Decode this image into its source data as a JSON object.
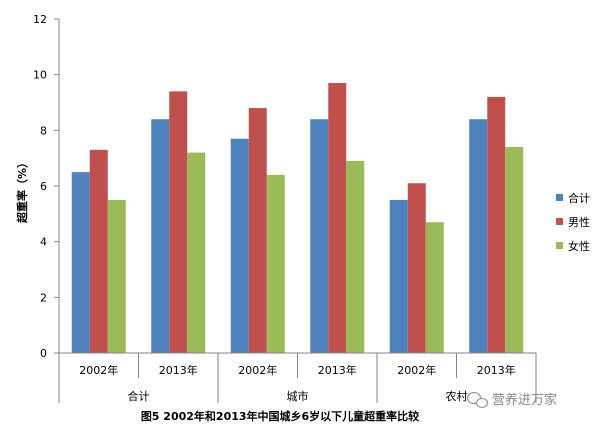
{
  "chart_data": {
    "type": "bar",
    "title": "图5 2002年和2013年中国城乡6岁以下儿童超重率比较",
    "ylabel": "超重率（%）",
    "xlabel": "",
    "ylim": [
      0,
      12
    ],
    "yticks": [
      0,
      2,
      4,
      6,
      8,
      10,
      12
    ],
    "grid": false,
    "legend_position": "right",
    "groups": [
      {
        "label": "合计",
        "categories": [
          "2002年",
          "2013年"
        ]
      },
      {
        "label": "城市",
        "categories": [
          "2002年",
          "2013年"
        ]
      },
      {
        "label": "农村",
        "categories": [
          "2002年",
          "2013年"
        ]
      }
    ],
    "categories": [
      "2002年",
      "2013年",
      "2002年",
      "2013年",
      "2002年",
      "2013年"
    ],
    "series": [
      {
        "name": "合计",
        "color": "#4F81BD",
        "values": [
          6.5,
          8.4,
          7.7,
          8.4,
          5.5,
          8.4
        ]
      },
      {
        "name": "男性",
        "color": "#C0504D",
        "values": [
          7.3,
          9.4,
          8.8,
          9.7,
          6.1,
          9.2
        ]
      },
      {
        "name": "女性",
        "color": "#9BBB59",
        "values": [
          5.5,
          7.2,
          6.4,
          6.9,
          4.7,
          7.4
        ]
      }
    ]
  },
  "watermark": {
    "text": "营养进万家",
    "icon": "wechat-icon"
  }
}
